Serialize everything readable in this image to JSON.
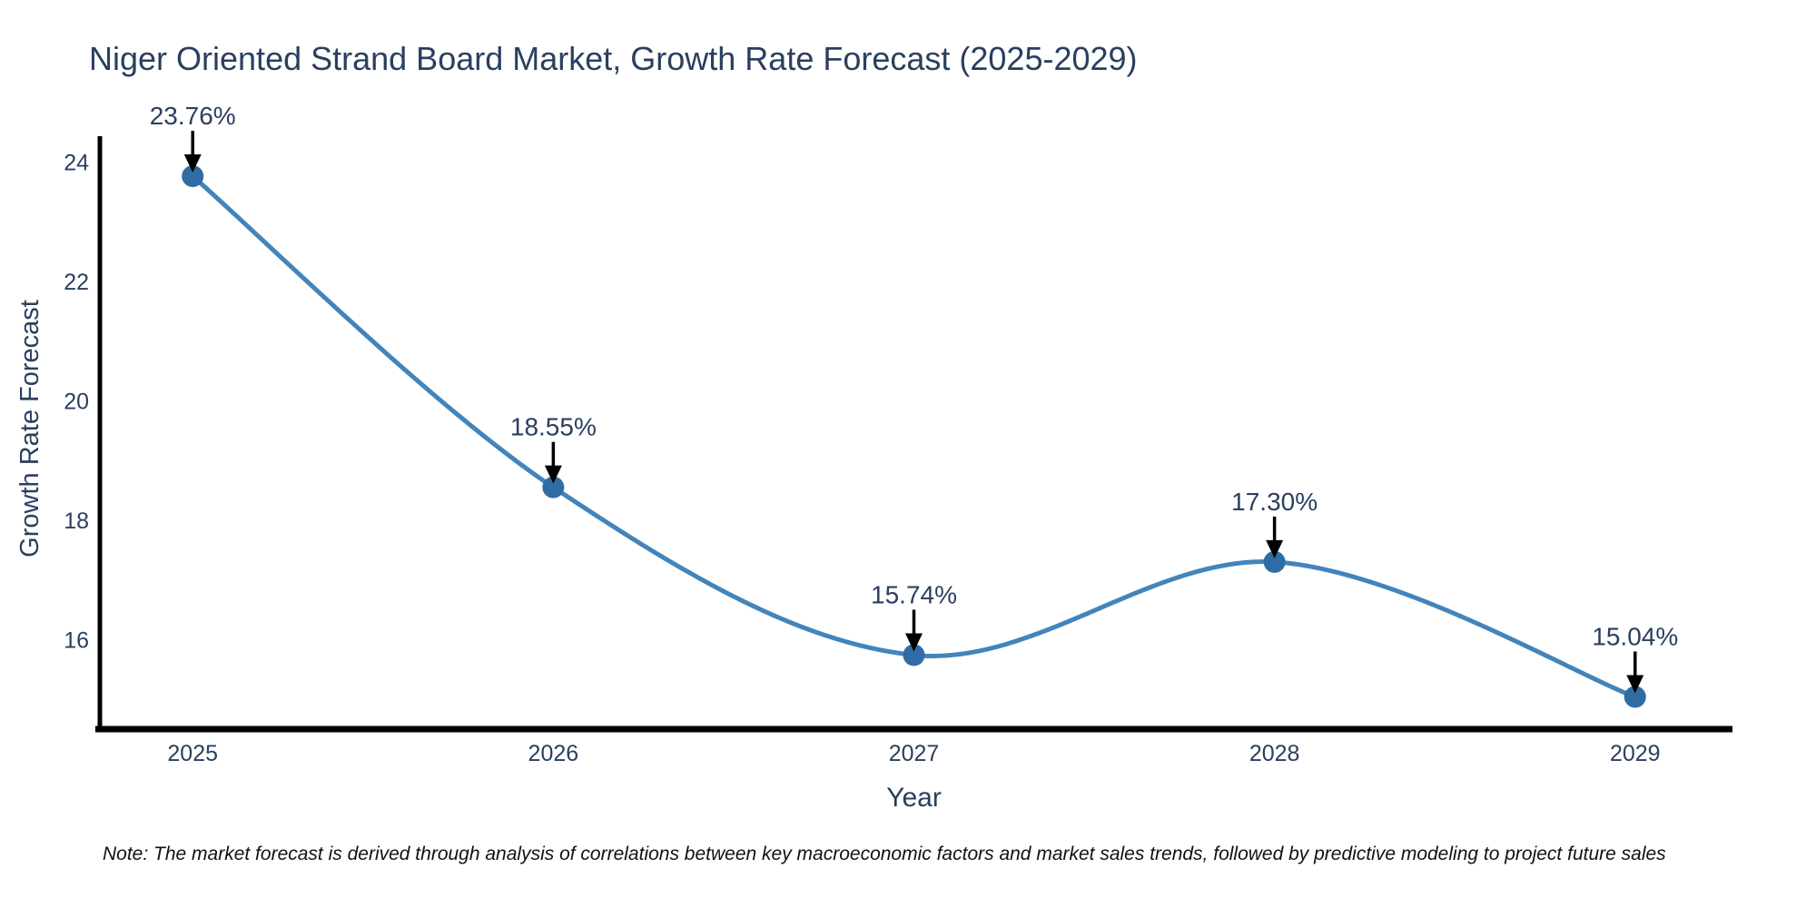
{
  "chart_data": {
    "type": "line",
    "title": "Niger Oriented Strand Board Market, Growth Rate Forecast (2025-2029)",
    "xlabel": "Year",
    "ylabel": "Growth Rate Forecast",
    "x": [
      2025,
      2026,
      2027,
      2028,
      2029
    ],
    "x_tick_labels": [
      "2025",
      "2026",
      "2027",
      "2028",
      "2029"
    ],
    "values": [
      23.76,
      18.55,
      15.74,
      17.3,
      15.04
    ],
    "point_labels": [
      "23.76%",
      "18.55%",
      "15.74%",
      "17.30%",
      "15.04%"
    ],
    "y_ticks": [
      16,
      18,
      20,
      22,
      24
    ],
    "ylim": [
      14.5,
      24.43
    ],
    "xlim": [
      2024.73,
      2029.27
    ],
    "line_shape": "spline",
    "grid": false,
    "legend": "none",
    "markers": "circle",
    "annotation_style": "value label with black down arrow to each point",
    "note": "Note: The market forecast is derived through analysis of correlations between key macroeconomic factors and market sales trends, followed by predictive modeling to project future sales",
    "colors": {
      "line": "#4384ba",
      "marker": "#2f6da4",
      "annotation_text": "#2a3f5f",
      "annotation_arrow": "#000000",
      "axis_line": "#000000",
      "tick_text": "#2a3f5f",
      "axis_title_text": "#2a3f5f",
      "title_text": "#2a3f5f",
      "note_text": "#111111",
      "background": "#ffffff"
    }
  }
}
